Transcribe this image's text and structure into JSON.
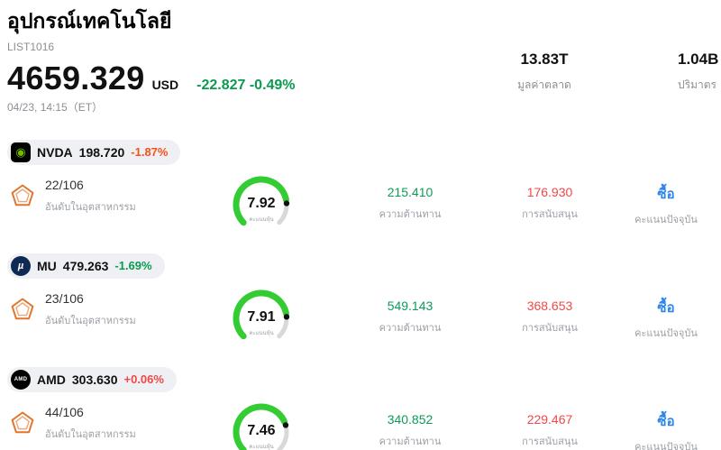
{
  "header": {
    "title": "อุปกรณ์เทคโนโลยี",
    "list_id": "LIST1016",
    "price": "4659.329",
    "currency": "USD",
    "change": "-22.827 -0.49%",
    "change_color": "#0a9b50",
    "timestamp": "04/23, 14:15（ET）",
    "stats": [
      {
        "value": "13.83T",
        "label": "มูลค่าตลาด"
      },
      {
        "value": "1.04B",
        "label": "ปริมาตร"
      }
    ]
  },
  "labels": {
    "rank": "อันดับในอุตสาหกรรม",
    "score": "คะแนนหุ้น",
    "resistance": "ความต้านทาน",
    "support": "การสนับสนุน",
    "rating": "คะแนนปัจจุบัน"
  },
  "gauge": {
    "max": 10,
    "arc_color": "#33cc33",
    "track_color": "#d9d9d9",
    "dot_color": "#111111"
  },
  "colors": {
    "green": "#0e9b57",
    "red": "#f04848",
    "blue": "#2d84eb"
  },
  "rows": [
    {
      "ticker": "NVDA",
      "price": "198.720",
      "change": "-1.87%",
      "change_color": "#f5511d",
      "logo_text": "◉",
      "logo_bg": "#000000",
      "logo_fg": "#76b900",
      "rank": "22/106",
      "score": "7.92",
      "resistance": "215.410",
      "resistance_color": "#0e9b57",
      "support": "176.930",
      "support_color": "#f04848",
      "rating": "ซื้อ",
      "rating_color": "#2d84eb"
    },
    {
      "ticker": "MU",
      "price": "479.263",
      "change": "-1.69%",
      "change_color": "#0a9b50",
      "logo_text": "µ",
      "logo_bg": "#0e2a52",
      "logo_fg": "#ffffff",
      "rank": "23/106",
      "score": "7.91",
      "resistance": "549.143",
      "resistance_color": "#0e9b57",
      "support": "368.653",
      "support_color": "#f04848",
      "rating": "ซื้อ",
      "rating_color": "#2d84eb"
    },
    {
      "ticker": "AMD",
      "price": "303.630",
      "change": "+0.06%",
      "change_color": "#f04848",
      "logo_text": "AMD",
      "logo_bg": "#000000",
      "logo_fg": "#ffffff",
      "rank": "44/106",
      "score": "7.46",
      "resistance": "340.852",
      "resistance_color": "#0e9b57",
      "support": "229.467",
      "support_color": "#f04848",
      "rating": "ซื้อ",
      "rating_color": "#2d84eb"
    }
  ]
}
